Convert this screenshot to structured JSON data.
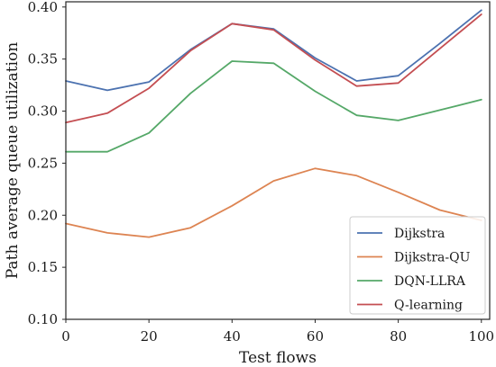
{
  "chart_data": {
    "type": "line",
    "title": "",
    "xlabel": "Test flows",
    "ylabel": "Path average queue utilization",
    "xlim": [
      0,
      102
    ],
    "ylim": [
      0.1,
      0.405
    ],
    "xticks": [
      0,
      20,
      40,
      60,
      80,
      100
    ],
    "xtick_labels": [
      "0",
      "20",
      "40",
      "60",
      "80",
      "100"
    ],
    "yticks": [
      0.1,
      0.15,
      0.2,
      0.25,
      0.3,
      0.35,
      0.4
    ],
    "ytick_labels": [
      "0.10",
      "0.15",
      "0.20",
      "0.25",
      "0.30",
      "0.35",
      "0.40"
    ],
    "grid": false,
    "legend_position": "bottom-right",
    "x": [
      0,
      10,
      20,
      30,
      40,
      50,
      60,
      70,
      80,
      90,
      100
    ],
    "series": [
      {
        "name": "Dijkstra",
        "color": "#4c72b0",
        "values": [
          0.329,
          0.32,
          0.328,
          0.359,
          0.384,
          0.379,
          0.351,
          0.329,
          0.334,
          0.365,
          0.397
        ]
      },
      {
        "name": "Dijkstra-QU",
        "color": "#dd8452",
        "values": [
          0.192,
          0.183,
          0.179,
          0.188,
          0.209,
          0.233,
          0.245,
          0.238,
          0.222,
          0.205,
          0.195
        ]
      },
      {
        "name": "DQN-LLRA",
        "color": "#55a868",
        "values": [
          0.261,
          0.261,
          0.279,
          0.317,
          0.348,
          0.346,
          0.319,
          0.296,
          0.291,
          0.301,
          0.311
        ]
      },
      {
        "name": "Q-learning",
        "color": "#c44e52",
        "values": [
          0.289,
          0.298,
          0.322,
          0.358,
          0.384,
          0.378,
          0.349,
          0.324,
          0.327,
          0.36,
          0.393
        ]
      }
    ]
  }
}
